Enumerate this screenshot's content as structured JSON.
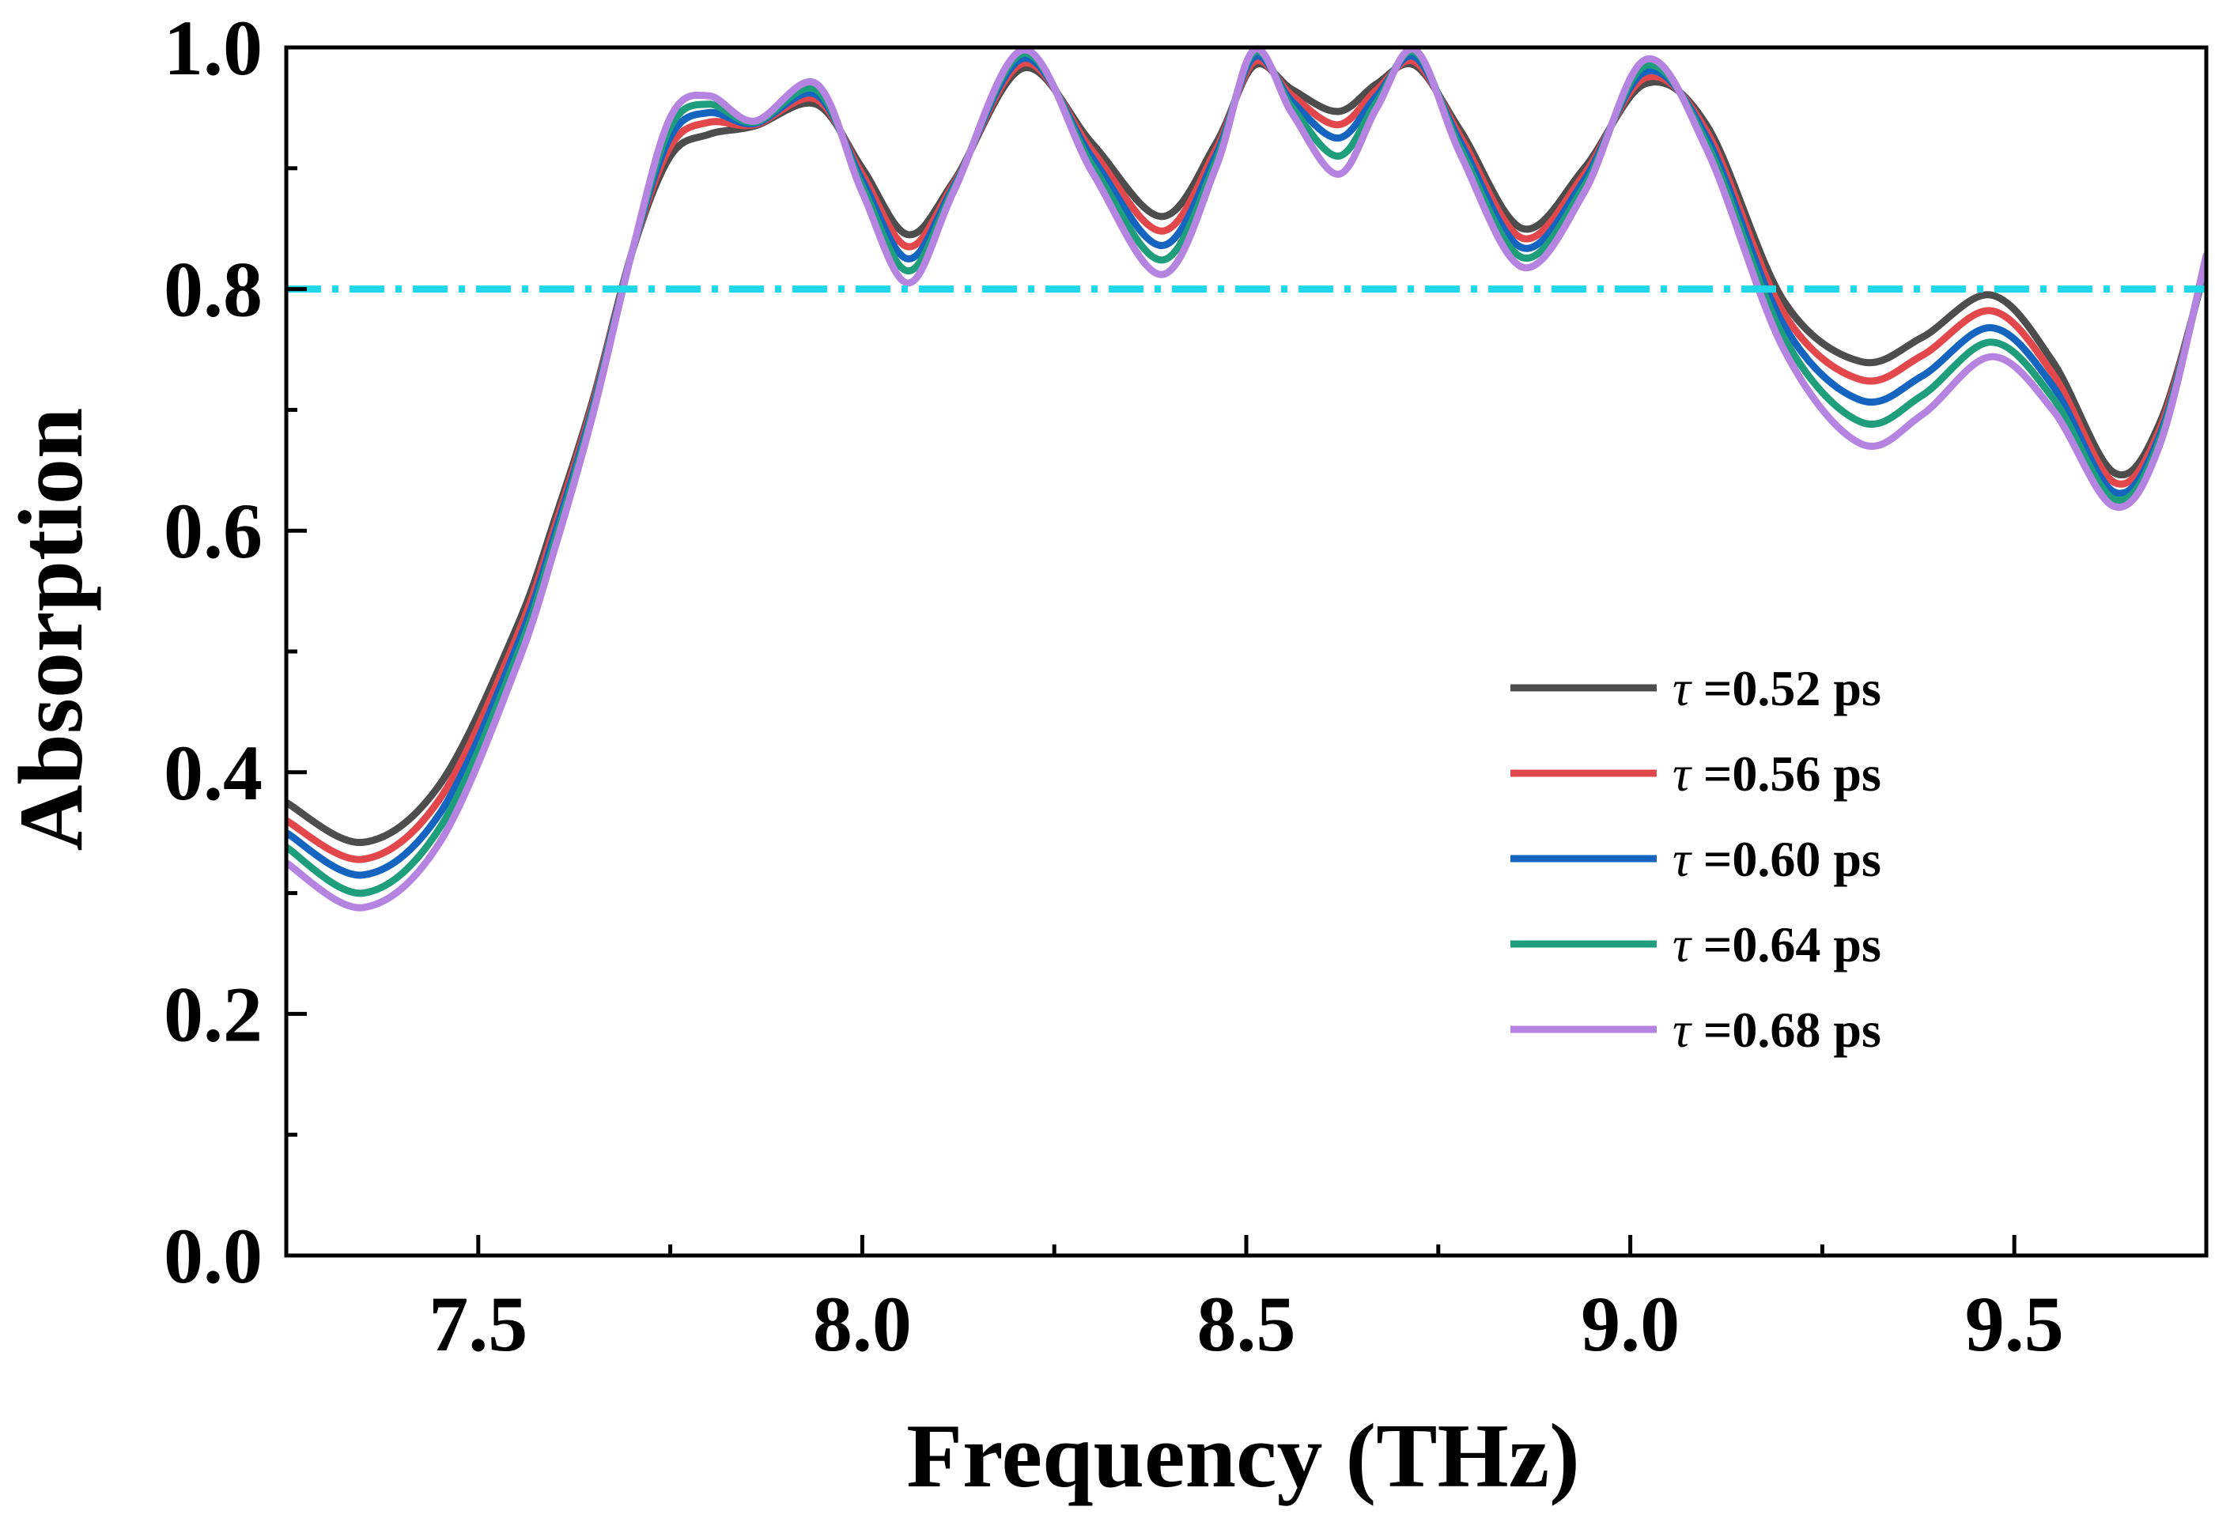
{
  "chart_data": {
    "type": "line",
    "title": "",
    "xlabel": "Frequency (THz)",
    "ylabel": "Absorption",
    "xlim": [
      7.25,
      9.75
    ],
    "ylim": [
      0.0,
      1.0
    ],
    "xticks": [
      "7.5",
      "8.0",
      "8.5",
      "9.0",
      "9.5"
    ],
    "xtick_values": [
      7.5,
      8.0,
      8.5,
      9.0,
      9.5
    ],
    "yticks": [
      "0.0",
      "0.2",
      "0.4",
      "0.6",
      "0.8",
      "1.0"
    ],
    "ytick_values": [
      0.0,
      0.2,
      0.4,
      0.6,
      0.8,
      1.0
    ],
    "legend_position": "center-right",
    "reference_line": {
      "y": 0.8,
      "style": "dash-dot",
      "color": "#1FD7E6"
    },
    "x": [
      7.25,
      7.35,
      7.45,
      7.55,
      7.6,
      7.65,
      7.7,
      7.75,
      7.8,
      7.86,
      7.94,
      8.0,
      8.06,
      8.12,
      8.21,
      8.3,
      8.39,
      8.46,
      8.51,
      8.56,
      8.62,
      8.67,
      8.72,
      8.78,
      8.86,
      8.94,
      9.02,
      9.1,
      9.2,
      9.3,
      9.38,
      9.47,
      9.55,
      9.63,
      9.69,
      9.75
    ],
    "series": [
      {
        "name": "τ =0.52 ps",
        "tau": "τ",
        "rest": "=0.52 ps",
        "color": "#4D4D4D",
        "values": [
          0.375,
          0.342,
          0.39,
          0.52,
          0.61,
          0.71,
          0.83,
          0.91,
          0.928,
          0.935,
          0.953,
          0.9,
          0.845,
          0.89,
          0.983,
          0.92,
          0.86,
          0.92,
          0.985,
          0.965,
          0.947,
          0.97,
          0.985,
          0.93,
          0.85,
          0.9,
          0.97,
          0.935,
          0.79,
          0.74,
          0.76,
          0.795,
          0.74,
          0.648,
          0.69,
          0.82
        ]
      },
      {
        "name": "τ =0.56 ps",
        "tau": "τ",
        "rest": "=0.56 ps",
        "color": "#E2474B",
        "values": [
          0.36,
          0.328,
          0.378,
          0.512,
          0.604,
          0.707,
          0.83,
          0.918,
          0.938,
          0.936,
          0.957,
          0.895,
          0.835,
          0.888,
          0.987,
          0.914,
          0.848,
          0.915,
          0.988,
          0.96,
          0.936,
          0.965,
          0.988,
          0.925,
          0.842,
          0.895,
          0.975,
          0.93,
          0.78,
          0.725,
          0.745,
          0.782,
          0.73,
          0.64,
          0.685,
          0.822
        ]
      },
      {
        "name": "τ =0.60 ps",
        "tau": "τ",
        "rest": "=0.60 ps",
        "color": "#1565C0",
        "values": [
          0.35,
          0.315,
          0.366,
          0.504,
          0.598,
          0.704,
          0.83,
          0.926,
          0.946,
          0.937,
          0.961,
          0.89,
          0.825,
          0.886,
          0.991,
          0.908,
          0.836,
          0.91,
          0.992,
          0.955,
          0.925,
          0.96,
          0.992,
          0.92,
          0.834,
          0.89,
          0.98,
          0.925,
          0.77,
          0.708,
          0.728,
          0.768,
          0.72,
          0.632,
          0.68,
          0.824
        ]
      },
      {
        "name": "τ =0.64 ps",
        "tau": "τ",
        "rest": "=0.64 ps",
        "color": "#1E9E7A",
        "values": [
          0.338,
          0.3,
          0.354,
          0.496,
          0.592,
          0.701,
          0.83,
          0.934,
          0.953,
          0.938,
          0.965,
          0.885,
          0.815,
          0.884,
          0.995,
          0.902,
          0.824,
          0.905,
          0.996,
          0.95,
          0.91,
          0.955,
          0.996,
          0.915,
          0.826,
          0.885,
          0.985,
          0.92,
          0.76,
          0.69,
          0.712,
          0.756,
          0.71,
          0.626,
          0.676,
          0.826
        ]
      },
      {
        "name": "τ =0.68 ps",
        "tau": "τ",
        "rest": "=0.68 ps",
        "color": "#B583E0",
        "values": [
          0.325,
          0.288,
          0.342,
          0.488,
          0.586,
          0.698,
          0.83,
          0.942,
          0.96,
          0.939,
          0.97,
          0.88,
          0.805,
          0.882,
          0.998,
          0.896,
          0.812,
          0.9,
          0.998,
          0.945,
          0.895,
          0.95,
          0.998,
          0.91,
          0.818,
          0.88,
          0.99,
          0.915,
          0.75,
          0.672,
          0.696,
          0.744,
          0.7,
          0.62,
          0.672,
          0.828
        ]
      }
    ]
  }
}
